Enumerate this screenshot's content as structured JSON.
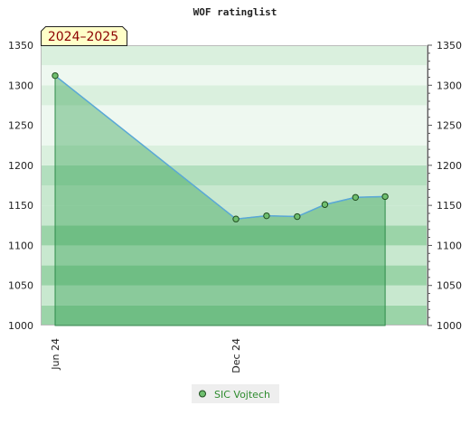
{
  "chart_data": {
    "type": "area",
    "title": "WOF ratinglist",
    "period_label": "2024–2025",
    "ylim": [
      1000,
      1350
    ],
    "y_ticks": [
      1000,
      1050,
      1100,
      1150,
      1200,
      1250,
      1300,
      1350
    ],
    "x_start": "2024-06-01",
    "x_end": "2025-06-01",
    "x_ticks": [
      {
        "label": "Jun 24",
        "date": "2024-06-01"
      },
      {
        "label": "Dec 24",
        "date": "2024-12-01"
      }
    ],
    "series": [
      {
        "name": "SIC Vojtech",
        "points": [
          {
            "date": "2024-06-01",
            "value": 1312
          },
          {
            "date": "2024-12-01",
            "value": 1133
          },
          {
            "date": "2025-01-01",
            "value": 1137
          },
          {
            "date": "2025-02-01",
            "value": 1136
          },
          {
            "date": "2025-03-01",
            "value": 1151
          },
          {
            "date": "2025-04-01",
            "value": 1160
          },
          {
            "date": "2025-05-01",
            "value": 1161
          }
        ]
      }
    ],
    "grid": true,
    "legend_position": "bottom-center",
    "colors": {
      "line": "#5aa8d8",
      "area_fill": "#2e9e4e",
      "area_edge": "#2e8b4a",
      "marker_fill": "#6fbf6f",
      "marker_edge": "#1f4d1f",
      "period_bg": "#ffffc8",
      "period_text": "#8b0000",
      "legend_bg": "#eeeeee",
      "legend_text": "#2e8b2e",
      "band_colors": [
        "#9bd4a8",
        "#c8e8cf",
        "#b2dfbe",
        "#daf0de",
        "#eef8f0"
      ]
    }
  }
}
